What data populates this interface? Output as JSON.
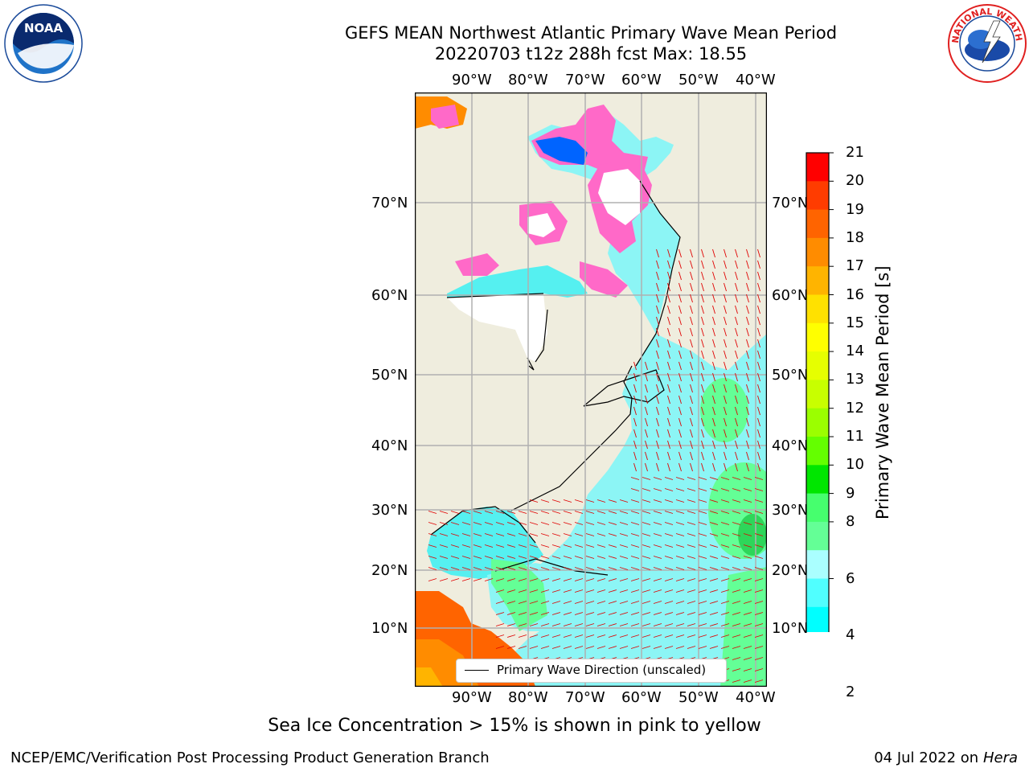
{
  "title": {
    "line1": "GEFS MEAN Northwest Atlantic Primary Wave Mean Period",
    "line2": "20220703 t12z 288h fcst   Max: 18.55"
  },
  "logos": {
    "left": "NOAA",
    "right": "NATIONAL WEATHER SERVICE"
  },
  "map": {
    "lon_labels_top": [
      "90°W",
      "80°W",
      "70°W",
      "60°W",
      "50°W",
      "40°W"
    ],
    "lon_labels_bottom": [
      "90°W",
      "80°W",
      "70°W",
      "60°W",
      "50°W",
      "40°W"
    ],
    "lat_labels_left": [
      "70°N",
      "60°N",
      "50°N",
      "40°N",
      "30°N",
      "20°N",
      "10°N"
    ],
    "lat_labels_right": [
      "70°N",
      "60°N",
      "50°N",
      "40°N",
      "30°N",
      "20°N",
      "10°N"
    ],
    "land_color": "#efedde",
    "ice_colors": [
      "#ff69c8",
      "#ffb400",
      "#ffff00"
    ],
    "legend": "Primary Wave Direction (unscaled)"
  },
  "colorbar": {
    "label": "Primary Wave Mean Period [s]",
    "ticks": [
      "21",
      "20",
      "19",
      "18",
      "17",
      "16",
      "15",
      "14",
      "13",
      "12",
      "11",
      "10",
      "9",
      "8",
      "6",
      "4",
      "2"
    ],
    "colors": [
      "#ff0000",
      "#ff3c00",
      "#ff6400",
      "#ff8c00",
      "#ffb400",
      "#ffe100",
      "#ffff00",
      "#e6ff00",
      "#c8ff00",
      "#9bff00",
      "#64ff00",
      "#00e600",
      "#46ff6e",
      "#64ff96",
      "#aaffff",
      "#50ffff",
      "#00ffff",
      "#00c8ff",
      "#0064ff"
    ],
    "under_color": "#0000ff"
  },
  "footer": {
    "sea_ice_note": "Sea Ice Concentration > 15% is shown in pink to yellow",
    "left": "NCEP/EMC/Verification Post Processing Product Generation Branch",
    "right_date": "04 Jul 2022 on ",
    "right_host": "Hera"
  }
}
